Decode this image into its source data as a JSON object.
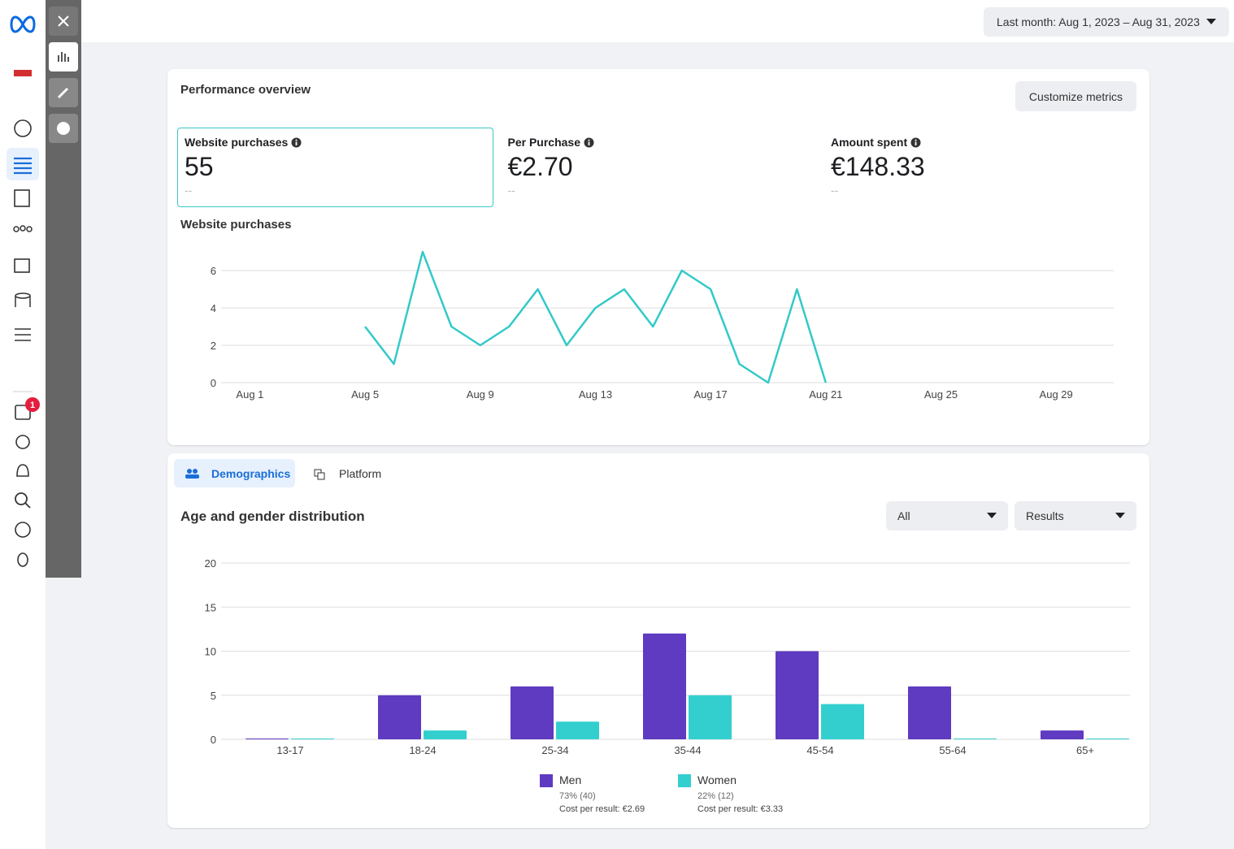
{
  "header": {
    "date_range": "Last month: Aug 1, 2023 – Aug 31, 2023"
  },
  "sidebar": {
    "badge": "1"
  },
  "overview": {
    "title": "Performance overview",
    "button": "Customize metrics",
    "metrics": [
      {
        "label": "Website purchases",
        "value": "55",
        "comparison": "--"
      },
      {
        "label": "Per Purchase",
        "value": "€2.70",
        "comparison": "--"
      },
      {
        "label": "Amount spent",
        "value": "€148.33",
        "comparison": "--"
      }
    ]
  },
  "breakdown": {
    "tabs": [
      "Demographics",
      "Platform"
    ],
    "filters": [
      "All",
      "Results"
    ]
  },
  "chart_data": [
    {
      "type": "line",
      "title": "Website purchases",
      "x": [
        5,
        6,
        7,
        8,
        9,
        10,
        11,
        12,
        13,
        14,
        15,
        16,
        17,
        18,
        19,
        20,
        21
      ],
      "values": [
        3,
        1,
        7,
        3,
        2,
        3,
        5,
        2,
        4,
        5,
        3,
        6,
        5,
        1,
        0,
        5,
        0
      ],
      "color": "#33c9c9",
      "xlim": [
        0,
        31
      ],
      "xticks": [
        {
          "value": 1,
          "label": "Aug 1"
        },
        {
          "value": 5,
          "label": "Aug 5"
        },
        {
          "value": 9,
          "label": "Aug 9"
        },
        {
          "value": 13,
          "label": "Aug 13"
        },
        {
          "value": 17,
          "label": "Aug 17"
        },
        {
          "value": 21,
          "label": "Aug 21"
        },
        {
          "value": 25,
          "label": "Aug 25"
        },
        {
          "value": 29,
          "label": "Aug 29"
        }
      ],
      "ylim": [
        0,
        7
      ],
      "yticks": [
        0,
        2,
        4,
        6
      ],
      "grid": true
    },
    {
      "type": "bar",
      "title": "Age and gender distribution",
      "categories": [
        "13-17",
        "18-24",
        "25-34",
        "35-44",
        "45-54",
        "55-64",
        "65+"
      ],
      "series": [
        {
          "name": "Men",
          "color": "#5e3bc0",
          "values": [
            0,
            5,
            6,
            12,
            10,
            6,
            1
          ],
          "share": "73% (40)",
          "cost": "Cost per result: €2.69"
        },
        {
          "name": "Women",
          "color": "#33cfcf",
          "values": [
            0,
            1,
            2,
            5,
            4,
            0,
            0
          ],
          "share": "22% (12)",
          "cost": "Cost per result: €3.33"
        }
      ],
      "ylim": [
        0,
        20
      ],
      "yticks": [
        0,
        5,
        10,
        15,
        20
      ],
      "grid": true
    }
  ]
}
